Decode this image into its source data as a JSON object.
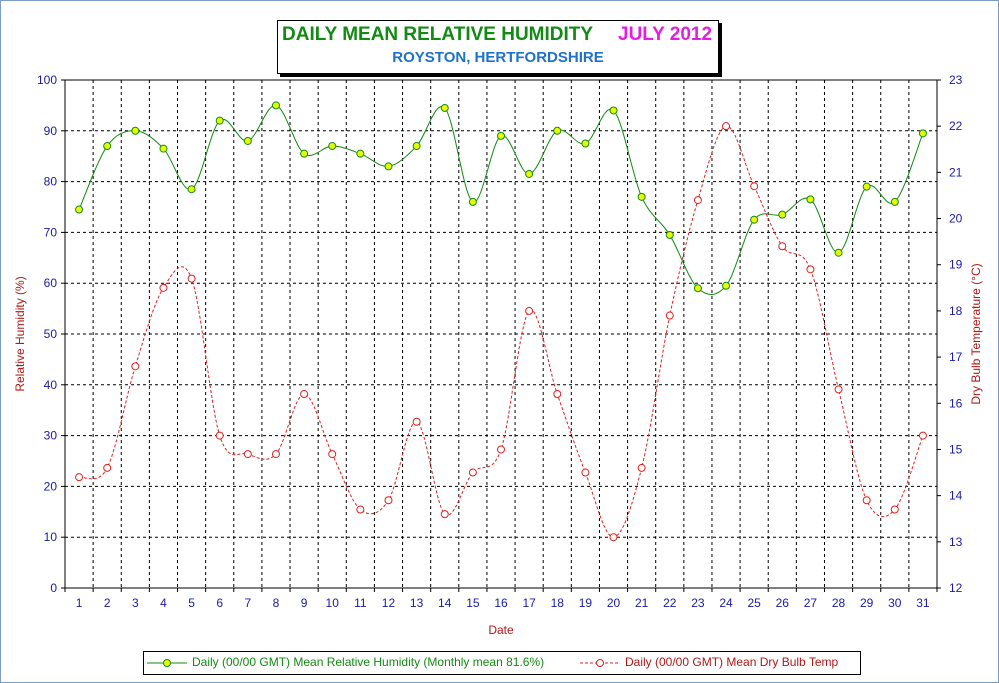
{
  "chart_data": {
    "type": "line",
    "title": "DAILY MEAN RELATIVE HUMIDITY",
    "title_period": "JULY 2012",
    "subtitle": "ROYSTON, HERTFORDSHIRE",
    "xlabel": "Date",
    "ylabel": "Relative Humidity (%)",
    "y2label": "Dry Bulb Temperature (°C)",
    "categories": [
      "1",
      "2",
      "3",
      "4",
      "5",
      "6",
      "7",
      "8",
      "9",
      "10",
      "11",
      "12",
      "13",
      "14",
      "15",
      "16",
      "17",
      "18",
      "19",
      "20",
      "21",
      "22",
      "23",
      "24",
      "25",
      "26",
      "27",
      "28",
      "29",
      "30",
      "31"
    ],
    "ylim": [
      0,
      100
    ],
    "yticks": [
      "0",
      "10",
      "20",
      "30",
      "40",
      "50",
      "60",
      "70",
      "80",
      "90",
      "100"
    ],
    "y2lim": [
      12,
      23
    ],
    "y2ticks": [
      "12",
      "13",
      "14",
      "15",
      "16",
      "17",
      "18",
      "19",
      "20",
      "21",
      "22",
      "23"
    ],
    "grid": true,
    "legend_position": "bottom",
    "series": [
      {
        "name": "Daily (00/00 GMT) Mean Relative Humidity (Monthly mean 81.6%)",
        "axis": "left",
        "color": "#138a13",
        "marker_color": "#e6ff00",
        "line_style": "solid",
        "values": [
          74.5,
          87,
          90,
          86.5,
          78.5,
          92,
          88,
          95,
          85.5,
          87,
          85.5,
          83,
          87,
          94.5,
          76,
          89,
          81.5,
          90,
          87.5,
          94,
          77,
          69.5,
          59,
          59.5,
          72.5,
          73.5,
          76.5,
          66,
          79,
          76,
          89.5
        ]
      },
      {
        "name": "Daily (00/00 GMT) Mean Dry Bulb Temp",
        "axis": "right",
        "color": "#e02020",
        "marker_color": "#ffffff",
        "line_style": "dashed",
        "values": [
          14.4,
          14.6,
          16.8,
          18.5,
          18.7,
          15.3,
          14.9,
          14.9,
          16.2,
          14.9,
          13.7,
          13.9,
          15.6,
          13.6,
          14.5,
          15.0,
          18.0,
          16.2,
          14.5,
          13.1,
          14.6,
          17.9,
          20.4,
          22.0,
          20.7,
          19.4,
          18.9,
          16.3,
          13.9,
          13.7,
          15.3
        ]
      }
    ]
  }
}
